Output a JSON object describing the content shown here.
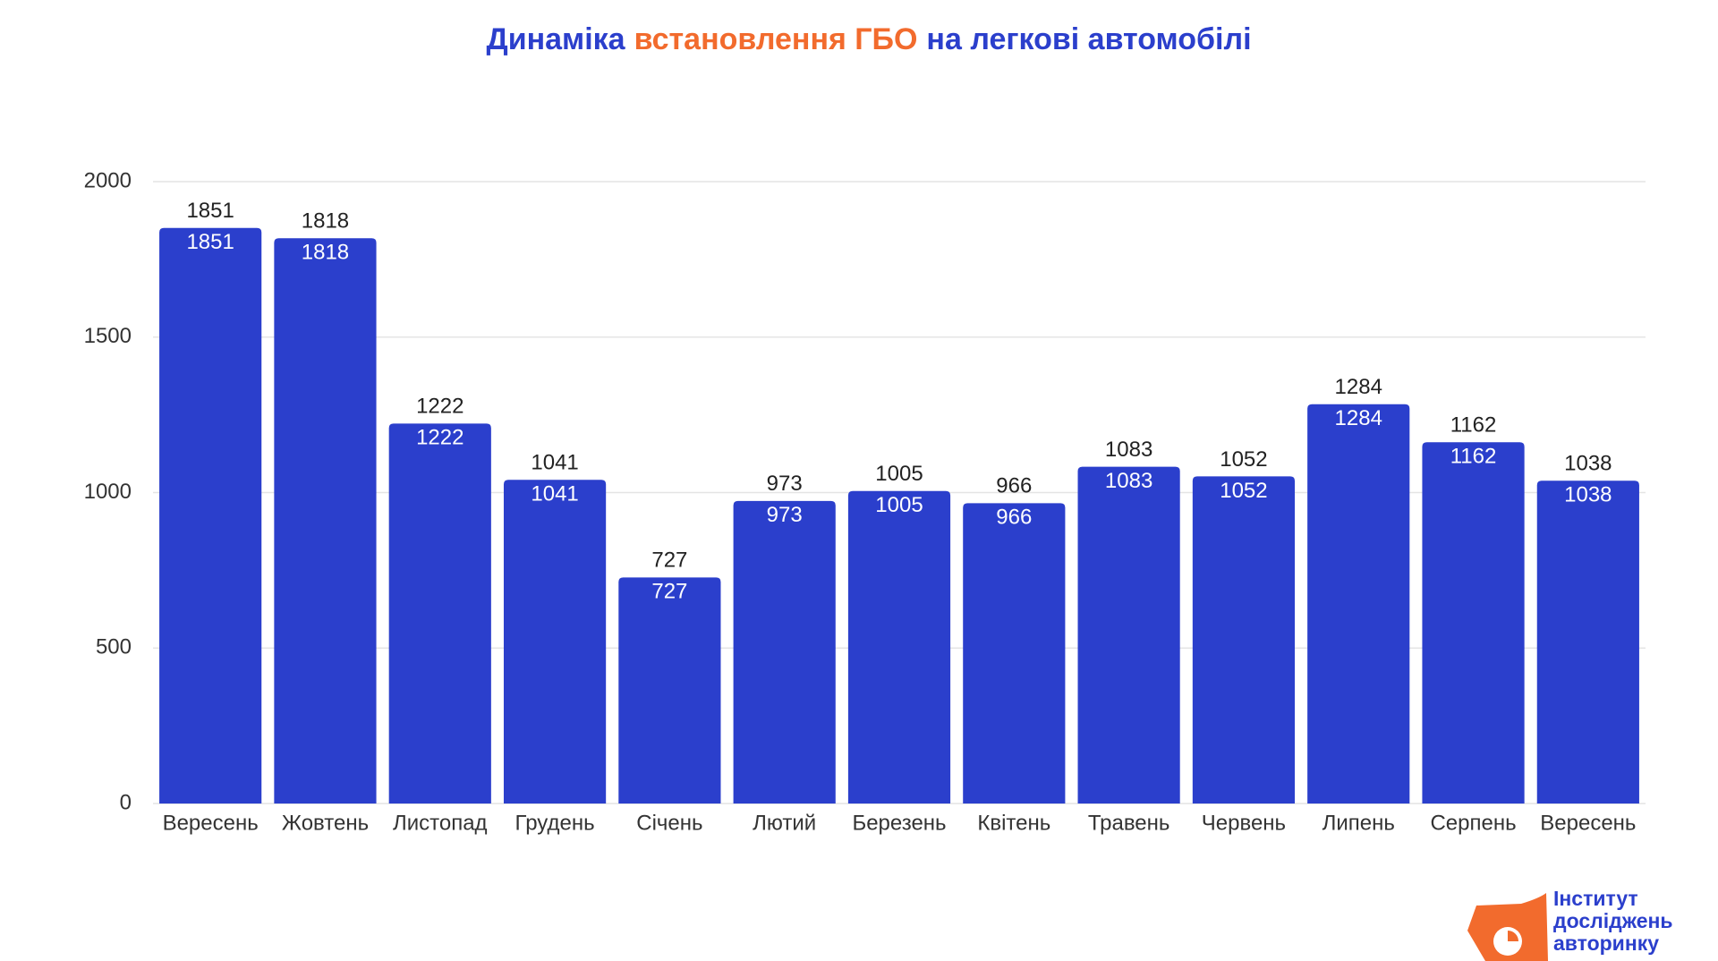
{
  "chart_data": {
    "type": "bar",
    "title_parts": [
      {
        "text": "Динаміка",
        "color": "#2b3fcc"
      },
      {
        "text": "встановлення ГБО",
        "color": "#f26b2d"
      },
      {
        "text": "на легкові автомобілі",
        "color": "#2b3fcc"
      }
    ],
    "categories": [
      "Вересень",
      "Жовтень",
      "Листопад",
      "Грудень",
      "Січень",
      "Лютий",
      "Березень",
      "Квітень",
      "Травень",
      "Червень",
      "Липень",
      "Серпень",
      "Вересень"
    ],
    "values": [
      1851,
      1818,
      1222,
      1041,
      727,
      973,
      1005,
      966,
      1083,
      1052,
      1284,
      1162,
      1038
    ],
    "color": "#2b3fcc",
    "ylim": [
      0,
      2000
    ],
    "yticks": [
      0,
      500,
      1000,
      1500,
      2000
    ],
    "grid": true,
    "logo": {
      "lines": [
        "Інститут",
        "досліджень",
        "авторинку"
      ],
      "color": "#2b3fcc",
      "accent": "#f26b2d"
    }
  }
}
